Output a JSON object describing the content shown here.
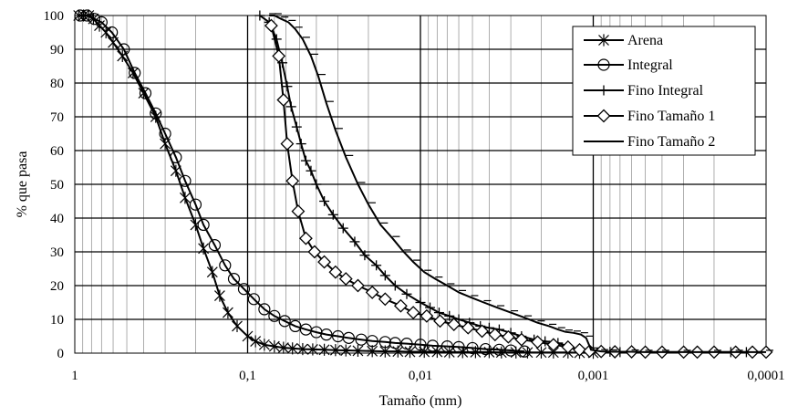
{
  "chart_data": {
    "type": "line",
    "title": "",
    "xlabel": "Tamaño (mm)",
    "ylabel": "% que pasa",
    "x_scale": "log",
    "x_reversed": true,
    "xlim": [
      1,
      0.0001
    ],
    "ylim": [
      0,
      100
    ],
    "x_tick_labels": [
      "1",
      "0,1",
      "0,01",
      "0,001",
      "0,0001"
    ],
    "y_tick_labels": [
      "0",
      "10",
      "20",
      "30",
      "40",
      "50",
      "60",
      "70",
      "80",
      "90",
      "100"
    ],
    "grid": true,
    "legend_position": "top-right",
    "series": [
      {
        "name": "Arena",
        "marker": "asterisk",
        "x": [
          0.95,
          0.89,
          0.83,
          0.78,
          0.72,
          0.66,
          0.6,
          0.53,
          0.46,
          0.4,
          0.34,
          0.3,
          0.26,
          0.23,
          0.2,
          0.18,
          0.16,
          0.145,
          0.13,
          0.115,
          0.1,
          0.09,
          0.08,
          0.07,
          0.062,
          0.055,
          0.048,
          0.042,
          0.036,
          0.031,
          0.027,
          0.023,
          0.019,
          0.016,
          0.0135,
          0.0115,
          0.0095,
          0.008,
          0.0068,
          0.0057,
          0.0048,
          0.004,
          0.0034,
          0.0028,
          0.0024,
          0.002,
          0.0017,
          0.0014,
          0.0012,
          0.001
        ],
        "y": [
          100,
          100,
          100,
          99,
          97,
          95,
          92,
          88,
          83,
          77,
          70,
          62,
          54,
          46,
          38,
          31,
          24,
          17,
          12,
          8,
          5,
          3.5,
          2.5,
          2,
          1.6,
          1.4,
          1.2,
          1.1,
          1,
          0.9,
          0.8,
          0.7,
          0.6,
          0.5,
          0.5,
          0.4,
          0.4,
          0.4,
          0.3,
          0.3,
          0.3,
          0.3,
          0.2,
          0.2,
          0.2,
          0.2,
          0.2,
          0.2,
          0.1,
          0.1
        ]
      },
      {
        "name": "Integral",
        "marker": "circle",
        "x": [
          0.93,
          0.85,
          0.77,
          0.7,
          0.61,
          0.52,
          0.45,
          0.39,
          0.34,
          0.3,
          0.26,
          0.23,
          0.2,
          0.18,
          0.155,
          0.135,
          0.12,
          0.105,
          0.092,
          0.08,
          0.07,
          0.061,
          0.053,
          0.046,
          0.04,
          0.035,
          0.03,
          0.026,
          0.022,
          0.019,
          0.016,
          0.014,
          0.012,
          0.01,
          0.0085,
          0.007,
          0.006,
          0.005,
          0.0042,
          0.0035,
          0.003,
          0.0025
        ],
        "y": [
          100,
          100,
          99,
          98,
          95,
          90,
          83,
          77,
          71,
          65,
          58,
          51,
          44,
          38,
          32,
          26,
          22,
          19,
          16,
          13,
          11,
          9.5,
          8,
          7,
          6.2,
          5.5,
          5,
          4.5,
          4,
          3.6,
          3.3,
          3,
          2.8,
          2.5,
          2.2,
          2,
          1.8,
          1.5,
          1.2,
          1,
          0.8,
          0.5
        ]
      },
      {
        "name": "Fino Integral",
        "marker": "plus",
        "x": [
          0.085,
          0.075,
          0.068,
          0.063,
          0.059,
          0.056,
          0.052,
          0.049,
          0.046,
          0.043,
          0.04,
          0.036,
          0.032,
          0.028,
          0.024,
          0.021,
          0.018,
          0.016,
          0.014,
          0.012,
          0.01,
          0.0088,
          0.0078,
          0.0068,
          0.006,
          0.0052,
          0.0045,
          0.004,
          0.0035,
          0.003,
          0.0026,
          0.0022,
          0.0019,
          0.0016,
          0.0014,
          0.0012,
          0.00105,
          0.0009,
          0.0008,
          0.0007,
          0.0006,
          0.0005,
          0.0004,
          0.0003,
          0.00025,
          0.0002,
          0.00016,
          0.00013,
          0.0001
        ],
        "y": [
          100,
          98,
          93,
          86,
          79,
          73,
          67,
          62,
          57,
          54,
          50,
          45,
          41,
          37,
          33,
          29,
          26,
          23,
          20,
          17.5,
          15,
          13.5,
          12,
          11,
          10,
          9,
          8,
          7.5,
          7,
          6,
          5,
          4,
          3.5,
          3,
          2,
          1,
          0.5,
          0.4,
          0.4,
          0.3,
          0.3,
          0.3,
          0.3,
          0.3,
          0.3,
          0.3,
          0.3,
          0.3,
          0.3
        ]
      },
      {
        "name": "Fino Tamaño 1",
        "marker": "diamond",
        "x": [
          0.073,
          0.066,
          0.062,
          0.059,
          0.055,
          0.051,
          0.046,
          0.041,
          0.036,
          0.031,
          0.027,
          0.023,
          0.019,
          0.016,
          0.013,
          0.011,
          0.0092,
          0.0077,
          0.0064,
          0.0053,
          0.0044,
          0.0037,
          0.0031,
          0.0026,
          0.0021,
          0.0017,
          0.0014,
          0.0012,
          0.00105,
          0.0009,
          0.00075,
          0.0006,
          0.0005,
          0.0004,
          0.0003,
          0.00025,
          0.0002,
          0.00015,
          0.00012,
          0.0001
        ],
        "y": [
          97,
          88,
          75,
          62,
          51,
          42,
          34,
          30,
          27,
          24,
          22,
          20,
          18,
          16,
          14,
          12,
          11,
          9.5,
          8.5,
          7.5,
          6.5,
          5.5,
          4.8,
          4,
          3.3,
          2.5,
          1.8,
          1,
          0.6,
          0.5,
          0.4,
          0.4,
          0.3,
          0.3,
          0.3,
          0.3,
          0.3,
          0.3,
          0.3,
          0.3
        ]
      },
      {
        "name": "Fino Tamaño 2",
        "marker": "dash",
        "x": [
          0.075,
          0.07,
          0.064,
          0.058,
          0.053,
          0.048,
          0.043,
          0.039,
          0.035,
          0.031,
          0.027,
          0.023,
          0.02,
          0.017,
          0.0145,
          0.0125,
          0.011,
          0.0095,
          0.0082,
          0.007,
          0.006,
          0.0051,
          0.0043,
          0.0036,
          0.003,
          0.0025,
          0.0021,
          0.0018,
          0.0016,
          0.00145,
          0.0013,
          0.00118,
          0.0011,
          0.00103,
          0.0009,
          0.0008,
          0.0006,
          0.0005,
          0.0004,
          0.0003,
          0.0002,
          0.00015,
          0.0001
        ],
        "y": [
          100,
          100,
          99,
          98,
          96,
          93,
          88,
          82,
          74,
          66,
          58,
          50,
          44,
          38,
          34,
          30,
          27,
          24,
          22,
          20,
          18,
          16.5,
          15,
          13.5,
          12,
          10.5,
          9,
          8,
          7,
          6.3,
          6,
          5.5,
          4.5,
          1,
          0.5,
          0.4,
          0.4,
          0.3,
          0.3,
          0.3,
          0.3,
          0.3,
          0.3
        ]
      }
    ]
  }
}
